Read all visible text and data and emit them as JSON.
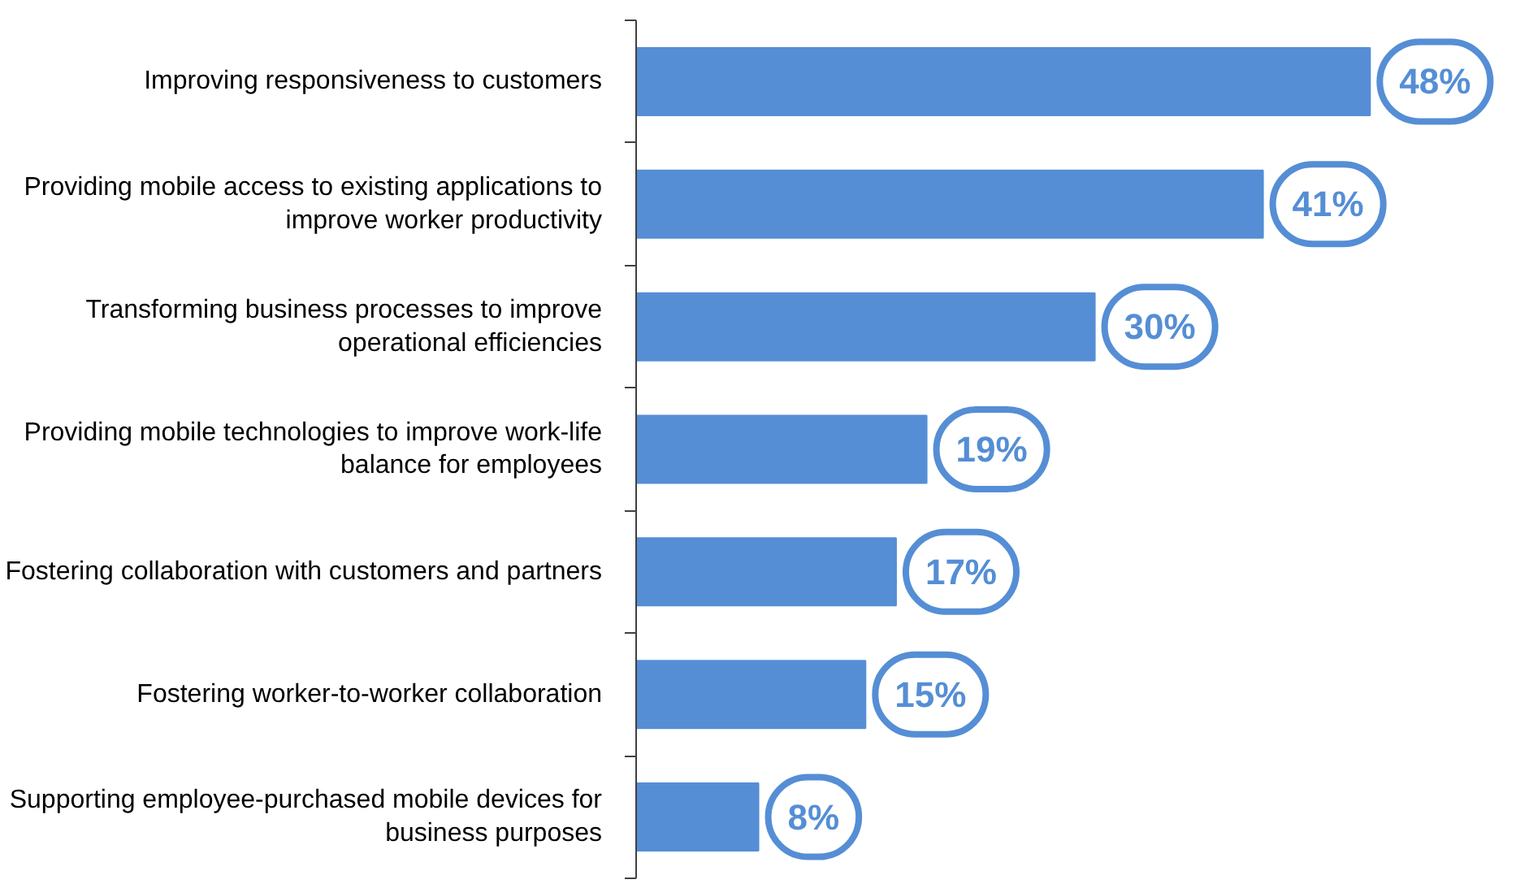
{
  "chart_data": {
    "type": "bar",
    "orientation": "horizontal",
    "categories": [
      "Improving responsiveness to customers",
      "Providing mobile access to existing applications to improve worker productivity",
      "Transforming business processes to improve operational efficiencies",
      "Providing mobile technologies to improve work-life balance for employees",
      "Fostering collaboration with customers and partners",
      "Fostering worker-to-worker collaboration",
      "Supporting employee-purchased mobile devices for business purposes"
    ],
    "values": [
      48,
      41,
      30,
      19,
      17,
      15,
      8
    ],
    "value_labels": [
      "48%",
      "41%",
      "30%",
      "19%",
      "17%",
      "15%",
      "8%"
    ],
    "color": "#558ed5",
    "grid": false
  }
}
